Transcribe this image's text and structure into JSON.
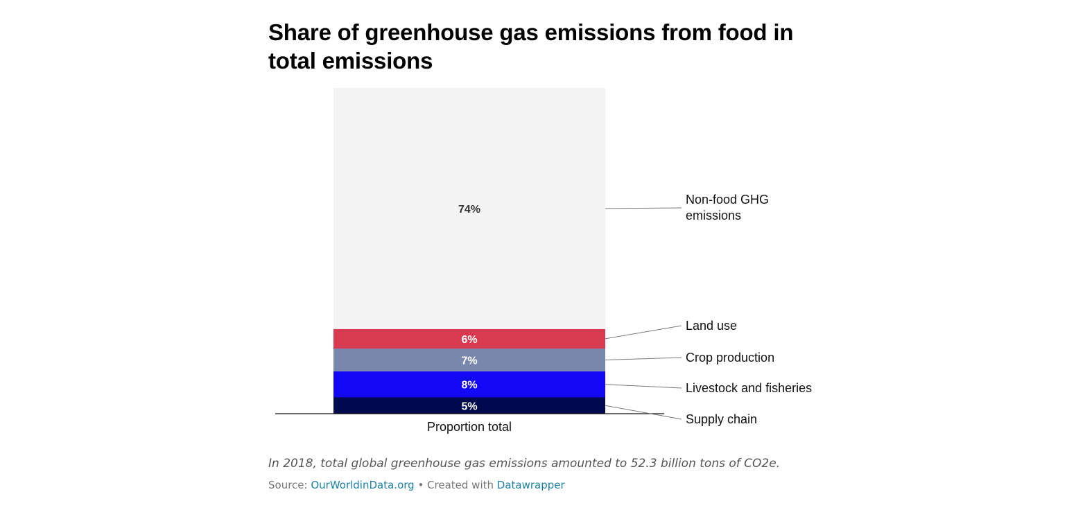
{
  "chart_data": {
    "type": "bar",
    "title": "Share of greenhouse gas emissions from food in total emissions",
    "categories": [
      "Proportion total"
    ],
    "stacked": true,
    "unit": "%",
    "ylim": [
      0,
      100
    ],
    "series": [
      {
        "name": "Supply chain",
        "values": [
          5
        ],
        "label": "5%",
        "color": "#000a4e",
        "label_color": "#ffffff"
      },
      {
        "name": "Livestock and fisheries",
        "values": [
          8
        ],
        "label": "8%",
        "color": "#1208f5",
        "label_color": "#ffffff"
      },
      {
        "name": "Crop production",
        "values": [
          7
        ],
        "label": "7%",
        "color": "#7887ab",
        "label_color": "#ffffff"
      },
      {
        "name": "Land use",
        "values": [
          6
        ],
        "label": "6%",
        "color": "#d83a52",
        "label_color": "#ffffff"
      },
      {
        "name": "Non-food GHG emissions",
        "values": [
          74
        ],
        "label": "74%",
        "color": "#f4f4f4",
        "label_color": "#333333"
      }
    ],
    "legend": [
      "Non-food GHG",
      "emissions",
      "Land use",
      "Crop production",
      "Livestock and fisheries",
      "Supply chain"
    ]
  },
  "notes": "In 2018, total global greenhouse gas emissions amounted to 52.3 billion tons of CO2e.",
  "footer": {
    "source_prefix": "Source: ",
    "source_link": "OurWorldinData.org",
    "separator": " • Created with ",
    "tool_link": "Datawrapper"
  }
}
